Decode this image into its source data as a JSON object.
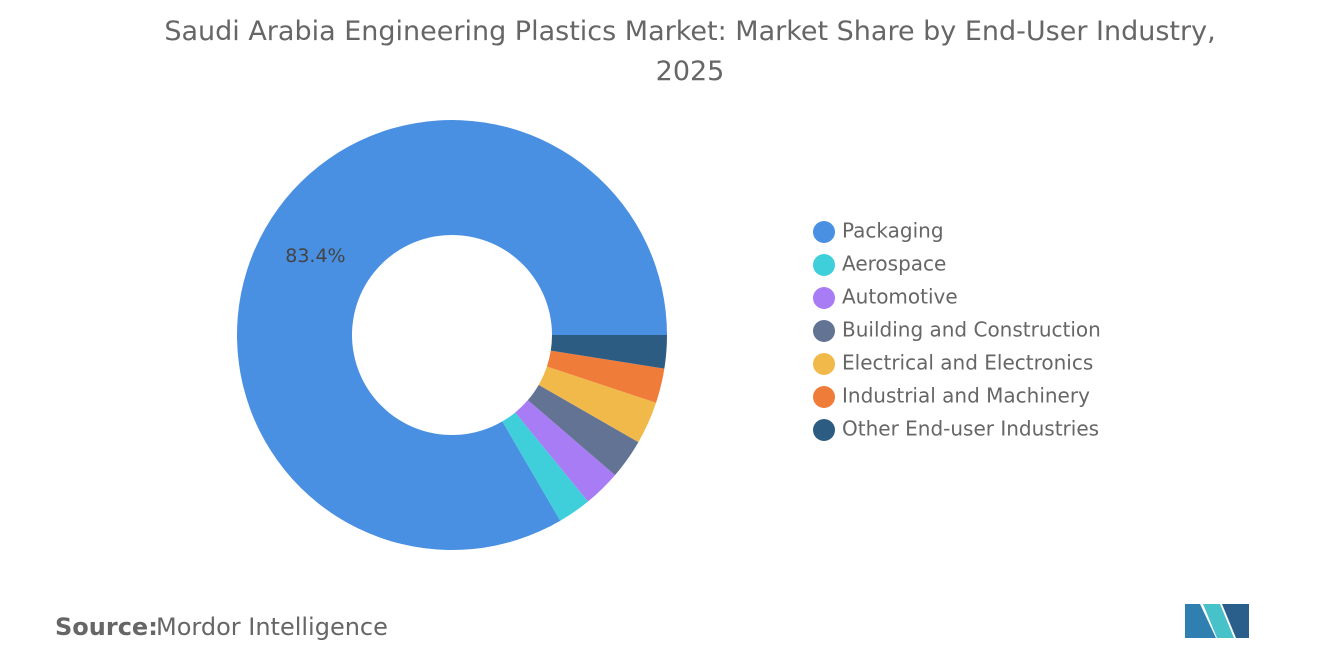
{
  "chart_data": {
    "type": "donut",
    "title": "Saudi Arabia Engineering Plastics Market: Market Share by End-User Industry, 2025",
    "categories": [
      "Packaging",
      "Aerospace",
      "Automotive",
      "Building and Construction",
      "Electrical and Electronics",
      "Industrial and Machinery",
      "Other End-user Industries"
    ],
    "values": [
      83.4,
      2.5,
      2.8,
      3.0,
      3.2,
      2.6,
      2.5
    ],
    "value_labels": [
      "83.4%",
      null,
      null,
      null,
      null,
      null,
      null
    ],
    "colors": [
      "#4a90e2",
      "#3ecfda",
      "#a77cf5",
      "#637394",
      "#f0b94a",
      "#f07c3a",
      "#2c5c82"
    ],
    "legend": "right"
  },
  "source": {
    "label": "Source:",
    "text": "Mordor Intelligence"
  }
}
